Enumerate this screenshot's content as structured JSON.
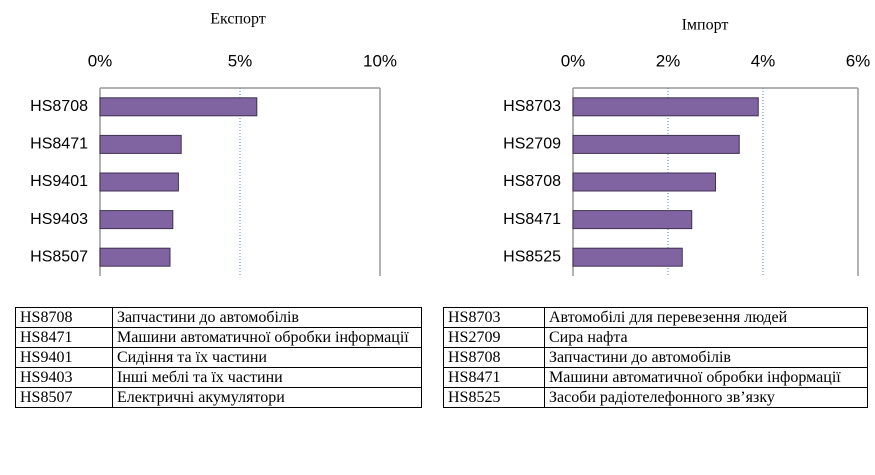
{
  "chart_data": [
    {
      "type": "barh",
      "title": "Експорт",
      "categories": [
        "HS8708",
        "HS8471",
        "HS9401",
        "HS9403",
        "HS8507"
      ],
      "values": [
        5.6,
        2.9,
        2.8,
        2.6,
        2.5
      ],
      "color": "#8064a2",
      "xlim": [
        0,
        10
      ],
      "xticks": [
        {
          "value": 0,
          "label": "0%"
        },
        {
          "value": 5,
          "label": "5%"
        },
        {
          "value": 10,
          "label": "10%"
        }
      ],
      "grid": true
    },
    {
      "type": "barh",
      "title": "Імпорт",
      "categories": [
        "HS8703",
        "HS2709",
        "HS8708",
        "HS8471",
        "HS8525"
      ],
      "values": [
        3.9,
        3.5,
        3.0,
        2.5,
        2.3
      ],
      "color": "#8064a2",
      "xlim": [
        0,
        6
      ],
      "xticks": [
        {
          "value": 0,
          "label": "0%"
        },
        {
          "value": 2,
          "label": "2%"
        },
        {
          "value": 4,
          "label": "4%"
        },
        {
          "value": 6,
          "label": "6%"
        }
      ],
      "grid": true
    }
  ],
  "tables": [
    {
      "rows": [
        [
          "HS8708",
          "Запчастини до автомобілів"
        ],
        [
          "HS8471",
          "Машини автоматичної обробки інформації"
        ],
        [
          "HS9401",
          "Сидіння та їх частини"
        ],
        [
          "HS9403",
          "Інші меблі та їх частини"
        ],
        [
          "HS8507",
          "Електричні акумулятори"
        ]
      ]
    },
    {
      "rows": [
        [
          "HS8703",
          "Автомобілі для перевезення людей"
        ],
        [
          "HS2709",
          "Сира нафта"
        ],
        [
          "HS8708",
          "Запчастини до автомобілів"
        ],
        [
          "HS8471",
          "Машини автоматичної обробки інформації"
        ],
        [
          "HS8525",
          "Засоби радіотелефонного зв’язку"
        ]
      ]
    }
  ]
}
